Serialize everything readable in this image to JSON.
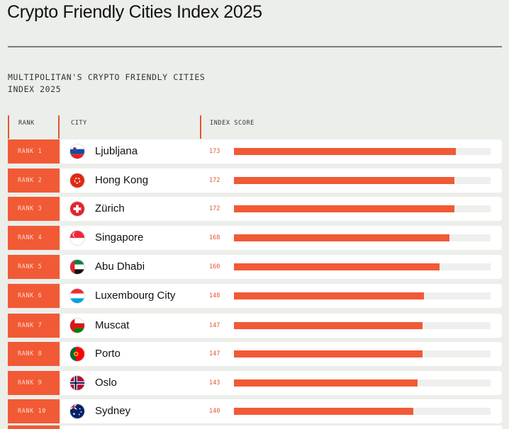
{
  "page": {
    "title": "Crypto Friendly Cities Index 2025",
    "subtitle": "MULTIPOLITAN'S CRYPTO FRIENDLY CITIES INDEX 2025"
  },
  "table": {
    "headers": {
      "rank": "RANK",
      "city": "CITY",
      "score": "INDEX SCORE"
    }
  },
  "colors": {
    "accent": "#f15a35",
    "background": "#eceeea",
    "track": "#efefed"
  },
  "chart_data": {
    "type": "bar",
    "orientation": "horizontal",
    "ranks": [
      "RANK 1",
      "RANK 2",
      "RANK 3",
      "RANK 4",
      "RANK 5",
      "RANK 6",
      "RANK 7",
      "RANK 8",
      "RANK 9",
      "RANK 10"
    ],
    "categories": [
      "Ljubljana",
      "Hong Kong",
      "Zürich",
      "Singapore",
      "Abu Dhabi",
      "Luxembourg City",
      "Muscat",
      "Porto",
      "Oslo",
      "Sydney"
    ],
    "flags": [
      "slovenia-flag-icon",
      "hong-kong-flag-icon",
      "switzerland-flag-icon",
      "singapore-flag-icon",
      "uae-flag-icon",
      "luxembourg-flag-icon",
      "oman-flag-icon",
      "portugal-flag-icon",
      "norway-flag-icon",
      "australia-flag-icon"
    ],
    "values": [
      173,
      172,
      172,
      168,
      160,
      148,
      147,
      147,
      143,
      140
    ],
    "xlim": [
      0,
      200
    ]
  }
}
